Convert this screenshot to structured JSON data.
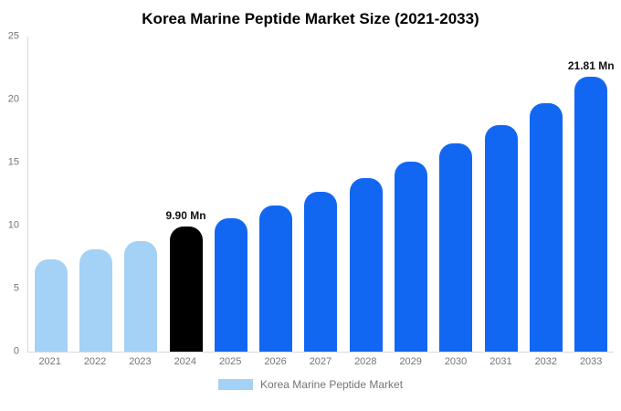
{
  "chart_data": {
    "type": "bar",
    "title": "Korea Marine Peptide Market Size (2021-2033)",
    "categories": [
      "2021",
      "2022",
      "2023",
      "2024",
      "2025",
      "2026",
      "2027",
      "2028",
      "2029",
      "2030",
      "2031",
      "2032",
      "2033"
    ],
    "values": [
      7.3,
      8.1,
      8.8,
      9.9,
      10.6,
      11.6,
      12.7,
      13.8,
      15.1,
      16.5,
      18.0,
      19.7,
      21.81
    ],
    "ylim": [
      0,
      25
    ],
    "yticks": [
      0,
      5,
      10,
      15,
      20,
      25
    ],
    "xlabel": "",
    "ylabel": "",
    "grid": false,
    "legend_position": "bottom",
    "point_labels": {
      "2024": "9.90 Mn",
      "2033": "21.81 Mn"
    },
    "bar_colors": [
      "#a4d1f6",
      "#a4d1f6",
      "#a4d1f6",
      "#000000",
      "#1267f2",
      "#1267f2",
      "#1267f2",
      "#1267f2",
      "#1267f2",
      "#1267f2",
      "#1267f2",
      "#1267f2",
      "#1267f2"
    ],
    "colors": {
      "historical": "#a4d1f6",
      "current": "#000000",
      "forecast": "#1267f2",
      "axis_text": "#757575",
      "axis_line": "#d9d9d9"
    }
  },
  "legend": {
    "label": "Korea Marine Peptide Market",
    "swatch_color": "#a4d1f6"
  }
}
